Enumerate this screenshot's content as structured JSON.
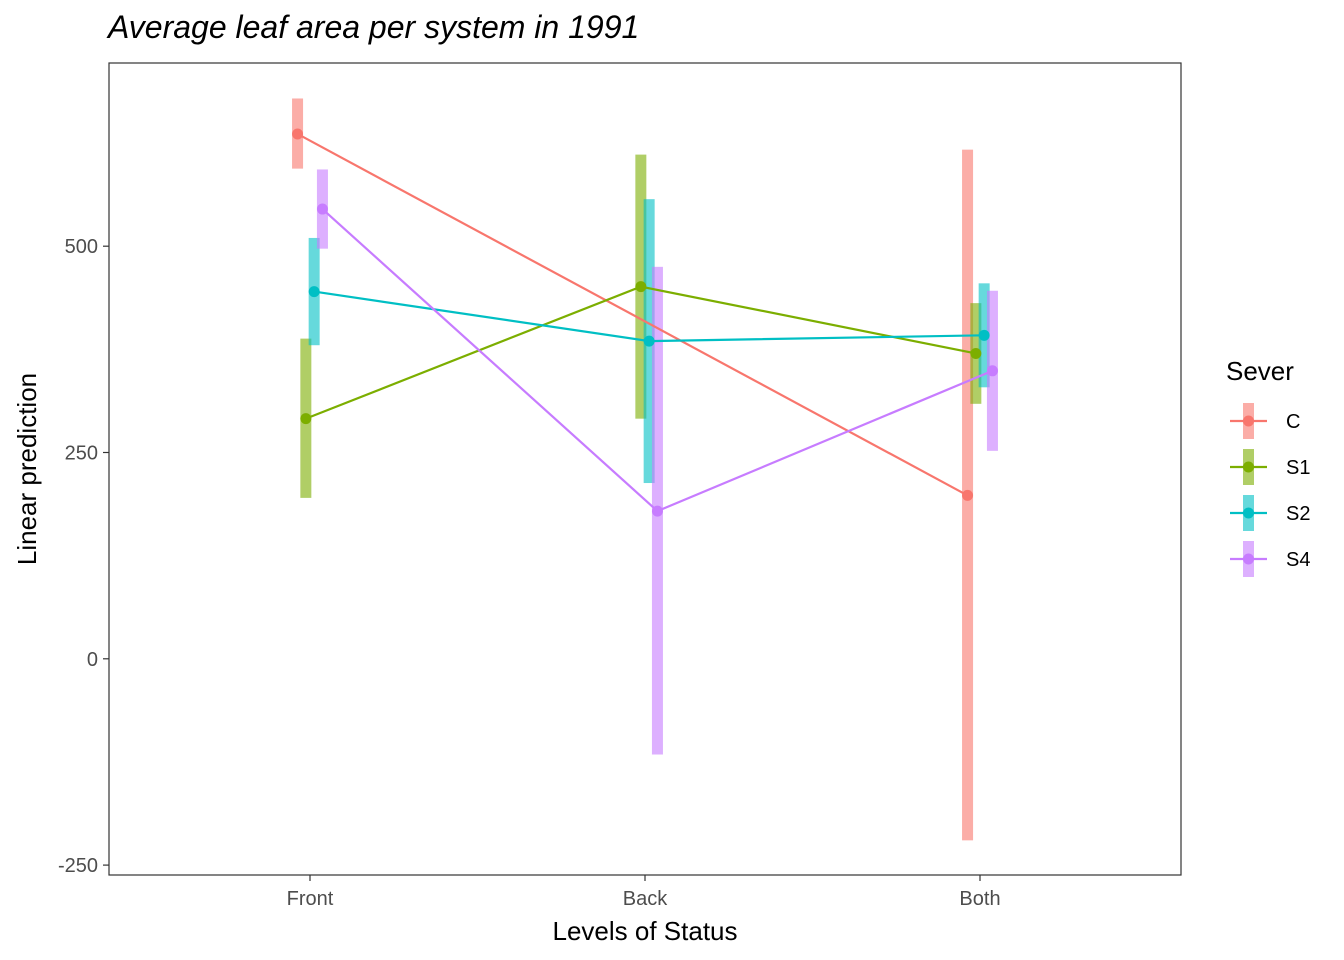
{
  "chart_data": {
    "type": "line",
    "title": "Average leaf area per system in 1991",
    "xlabel": "Levels of Status",
    "ylabel": "Linear prediction",
    "categories": [
      "Front",
      "Back",
      "Both"
    ],
    "y_ticks": [
      -250,
      0,
      250,
      500
    ],
    "y_tick_labels": [
      "-250",
      "0",
      "250",
      "500"
    ],
    "ylim": [
      -262,
      722
    ],
    "grid": false,
    "legend": {
      "title": "Sever",
      "position": "right"
    },
    "series": [
      {
        "name": "C",
        "color": "#F8766D",
        "values": [
          636,
          null,
          198
        ],
        "lower": [
          594,
          null,
          -220
        ],
        "upper": [
          679,
          null,
          617
        ]
      },
      {
        "name": "S1",
        "color": "#7CAE00",
        "values": [
          291,
          451,
          370
        ],
        "lower": [
          195,
          291,
          309
        ],
        "upper": [
          388,
          611,
          431
        ]
      },
      {
        "name": "S2",
        "color": "#00BFC4",
        "values": [
          445,
          385,
          392
        ],
        "lower": [
          380,
          213,
          329
        ],
        "upper": [
          510,
          557,
          455
        ]
      },
      {
        "name": "S4",
        "color": "#C77CFF",
        "values": [
          545,
          179,
          349
        ],
        "lower": [
          497,
          -116,
          252
        ],
        "upper": [
          593,
          475,
          446
        ]
      }
    ]
  }
}
